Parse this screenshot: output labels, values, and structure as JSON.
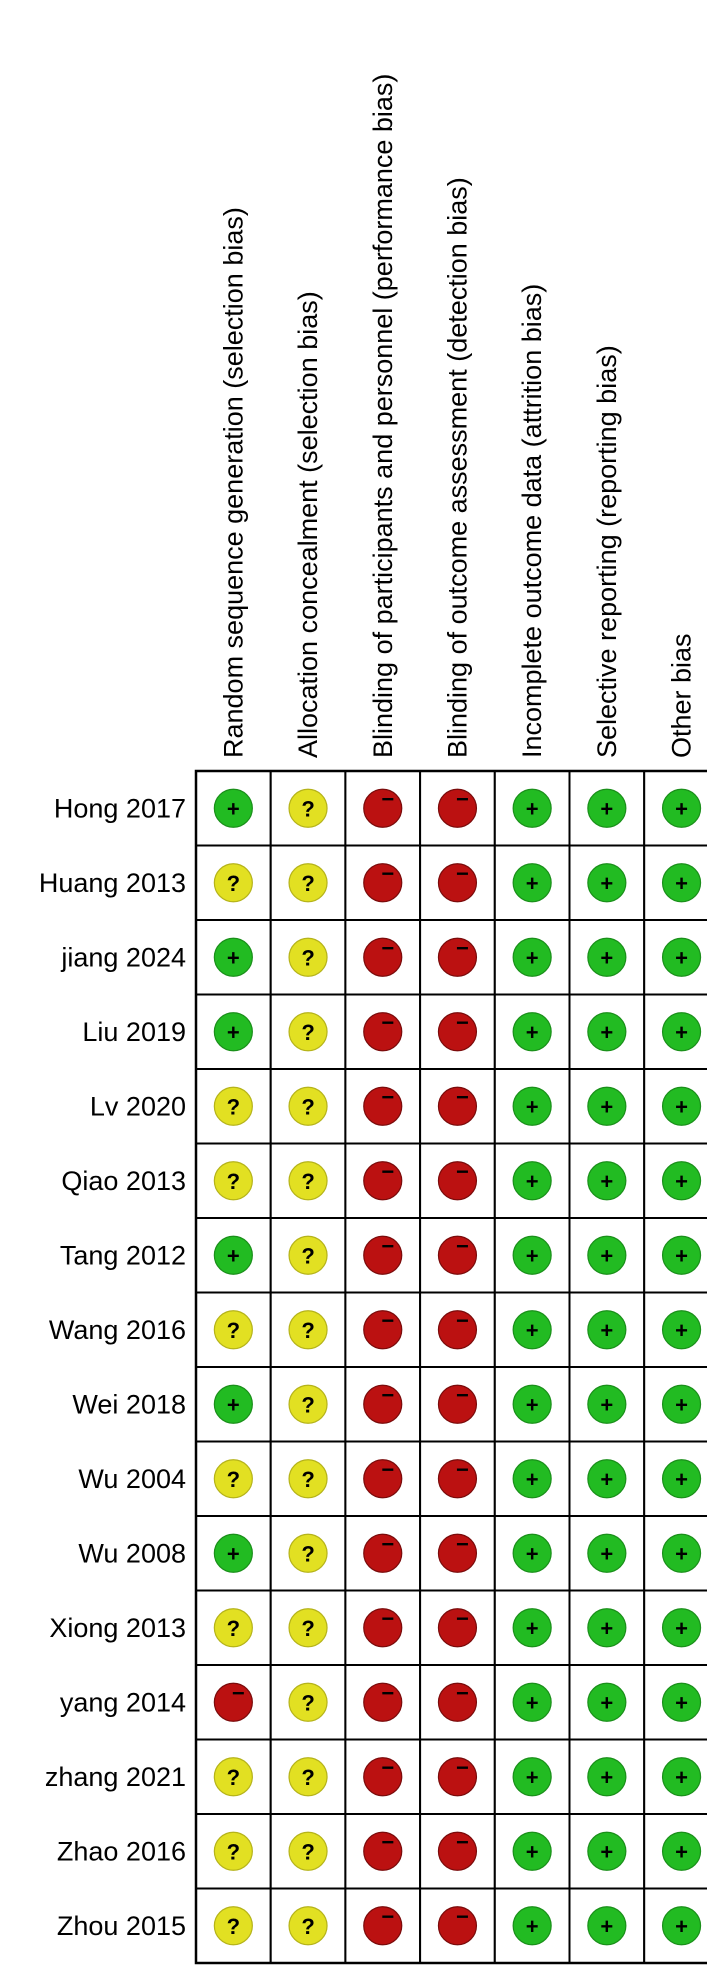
{
  "chart_data": {
    "type": "table",
    "columns": [
      "Random sequence generation (selection bias)",
      "Allocation concealment (selection bias)",
      "Blinding of participants and personnel (performance bias)",
      "Blinding of outcome assessment (detection bias)",
      "Incomplete outcome data (attrition bias)",
      "Selective reporting (reporting bias)",
      "Other bias"
    ],
    "rows": [
      {
        "study": "Hong 2017",
        "ratings": [
          "low",
          "unclear",
          "high",
          "high",
          "low",
          "low",
          "low"
        ]
      },
      {
        "study": "Huang 2013",
        "ratings": [
          "unclear",
          "unclear",
          "high",
          "high",
          "low",
          "low",
          "low"
        ]
      },
      {
        "study": "jiang 2024",
        "ratings": [
          "low",
          "unclear",
          "high",
          "high",
          "low",
          "low",
          "low"
        ]
      },
      {
        "study": "Liu 2019",
        "ratings": [
          "low",
          "unclear",
          "high",
          "high",
          "low",
          "low",
          "low"
        ]
      },
      {
        "study": "Lv 2020",
        "ratings": [
          "unclear",
          "unclear",
          "high",
          "high",
          "low",
          "low",
          "low"
        ]
      },
      {
        "study": "Qiao 2013",
        "ratings": [
          "unclear",
          "unclear",
          "high",
          "high",
          "low",
          "low",
          "low"
        ]
      },
      {
        "study": "Tang 2012",
        "ratings": [
          "low",
          "unclear",
          "high",
          "high",
          "low",
          "low",
          "low"
        ]
      },
      {
        "study": "Wang 2016",
        "ratings": [
          "unclear",
          "unclear",
          "high",
          "high",
          "low",
          "low",
          "low"
        ]
      },
      {
        "study": "Wei 2018",
        "ratings": [
          "low",
          "unclear",
          "high",
          "high",
          "low",
          "low",
          "low"
        ]
      },
      {
        "study": "Wu 2004",
        "ratings": [
          "unclear",
          "unclear",
          "high",
          "high",
          "low",
          "low",
          "low"
        ]
      },
      {
        "study": "Wu 2008",
        "ratings": [
          "low",
          "unclear",
          "high",
          "high",
          "low",
          "low",
          "low"
        ]
      },
      {
        "study": "Xiong 2013",
        "ratings": [
          "unclear",
          "unclear",
          "high",
          "high",
          "low",
          "low",
          "low"
        ]
      },
      {
        "study": "yang 2014",
        "ratings": [
          "high",
          "unclear",
          "high",
          "high",
          "low",
          "low",
          "low"
        ]
      },
      {
        "study": "zhang 2021",
        "ratings": [
          "unclear",
          "unclear",
          "high",
          "high",
          "low",
          "low",
          "low"
        ]
      },
      {
        "study": "Zhao 2016",
        "ratings": [
          "unclear",
          "unclear",
          "high",
          "high",
          "low",
          "low",
          "low"
        ]
      },
      {
        "study": "Zhou 2015",
        "ratings": [
          "unclear",
          "unclear",
          "high",
          "high",
          "low",
          "low",
          "low"
        ]
      }
    ],
    "rating_styles": {
      "low": {
        "symbol": "+",
        "color": "#22bb22",
        "stroke": "#1a8f1a"
      },
      "unclear": {
        "symbol": "?",
        "color": "#e2e022",
        "stroke": "#b5b31a"
      },
      "high": {
        "symbol": "−",
        "color": "#bb1111",
        "stroke": "#7a0b0b"
      }
    }
  }
}
